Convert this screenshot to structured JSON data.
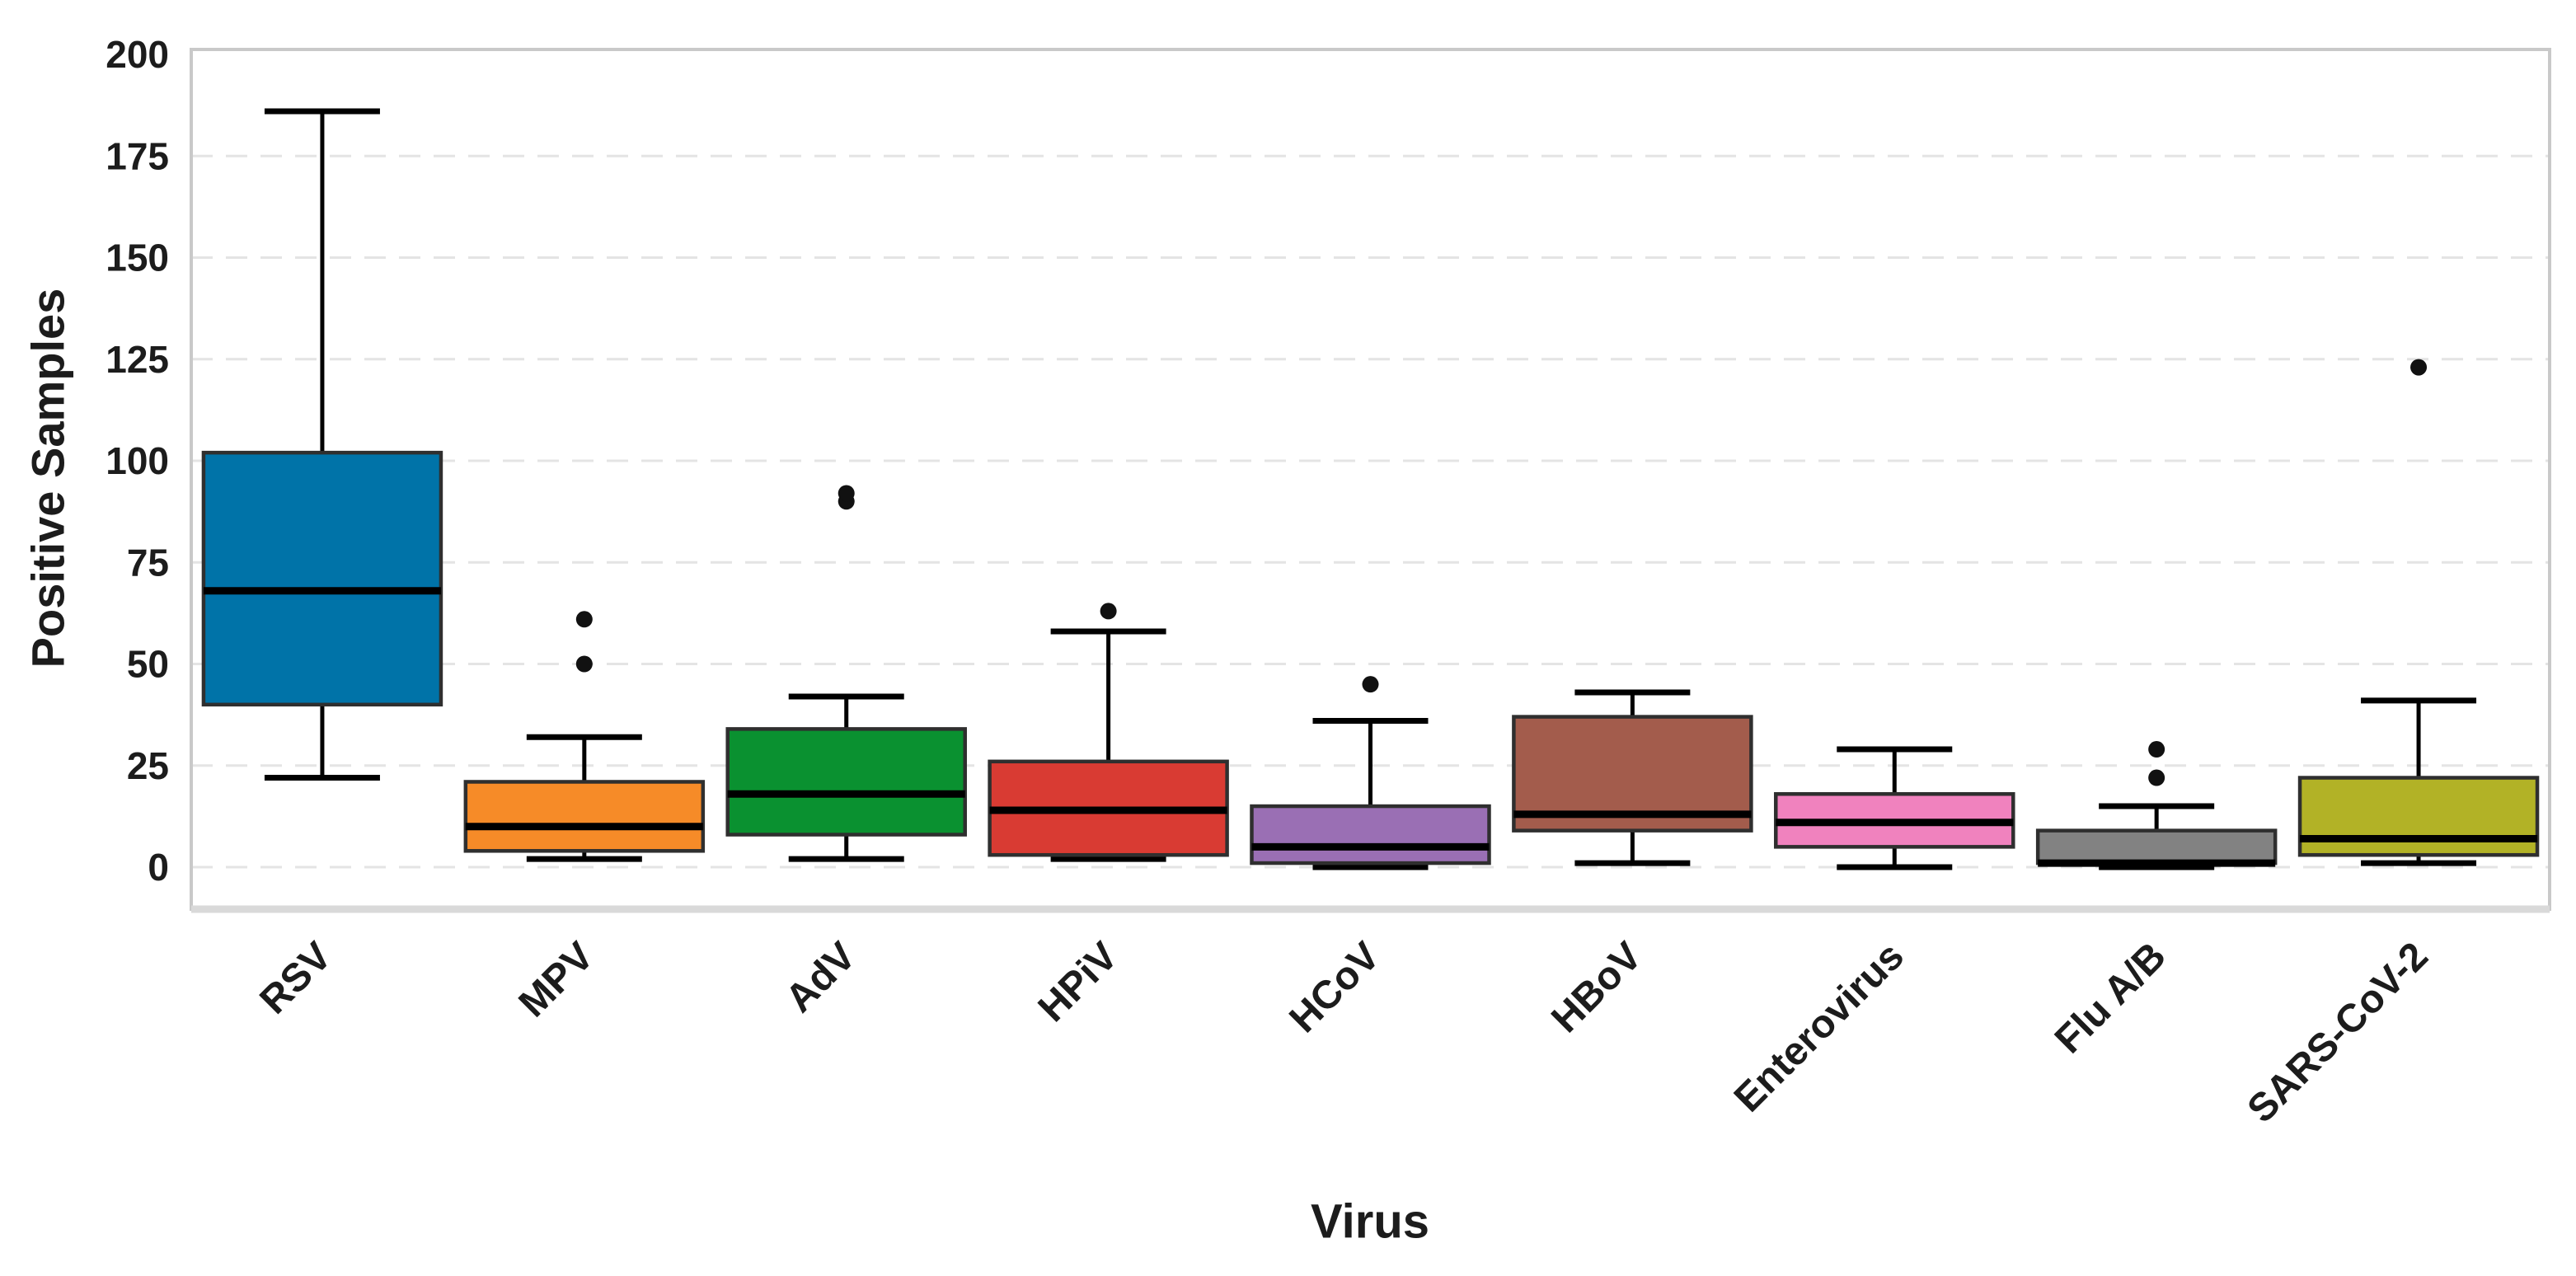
{
  "chart_data": {
    "type": "box",
    "title": "",
    "xlabel": "Virus",
    "ylabel": "Positive Samples",
    "ylim": [
      0,
      200
    ],
    "yticks": [
      0,
      25,
      50,
      75,
      100,
      125,
      150,
      175,
      200
    ],
    "grid": {
      "axis": "y",
      "style": "dashed",
      "top_tick_gridline": false
    },
    "legend_position": "none",
    "categories": [
      "RSV",
      "MPV",
      "AdV",
      "HPiV",
      "HCoV",
      "HBoV",
      "Enterovirus",
      "Flu A/B",
      "SARS-CoV-2"
    ],
    "series": [
      {
        "name": "RSV",
        "color": "#0073A8",
        "whislo": 22,
        "q1": 40,
        "med": 68,
        "q3": 102,
        "whishi": 186,
        "outliers": []
      },
      {
        "name": "MPV",
        "color": "#F68B28",
        "whislo": 2,
        "q1": 4,
        "med": 10,
        "q3": 21,
        "whishi": 32,
        "outliers": [
          50,
          61
        ]
      },
      {
        "name": "AdV",
        "color": "#0A9130",
        "whislo": 2,
        "q1": 8,
        "med": 18,
        "q3": 34,
        "whishi": 42,
        "outliers": [
          90,
          92
        ]
      },
      {
        "name": "HPiV",
        "color": "#D93B33",
        "whislo": 2,
        "q1": 3,
        "med": 14,
        "q3": 26,
        "whishi": 58,
        "outliers": [
          63
        ]
      },
      {
        "name": "HCoV",
        "color": "#9A6FB4",
        "whislo": 0,
        "q1": 1,
        "med": 5,
        "q3": 15,
        "whishi": 36,
        "outliers": [
          45
        ]
      },
      {
        "name": "HBoV",
        "color": "#A35C4C",
        "whislo": 1,
        "q1": 9,
        "med": 13,
        "q3": 37,
        "whishi": 43,
        "outliers": []
      },
      {
        "name": "Enterovirus",
        "color": "#F082BE",
        "whislo": 0,
        "q1": 5,
        "med": 11,
        "q3": 18,
        "whishi": 29,
        "outliers": []
      },
      {
        "name": "Flu A/B",
        "color": "#828282",
        "whislo": 0,
        "q1": 1,
        "med": 1,
        "q3": 9,
        "whishi": 15,
        "outliers": [
          22,
          29
        ]
      },
      {
        "name": "SARS-CoV-2",
        "color": "#B2B226",
        "whislo": 1,
        "q1": 3,
        "med": 7,
        "q3": 22,
        "whishi": 41,
        "outliers": [
          123
        ]
      }
    ],
    "style": {
      "background": "#ffffff",
      "grid_color": "#e4e4e4",
      "spine_color": "#c9c9c9",
      "bottom_spine_color": "#d9d9d9",
      "box_edge_color": "#2f2f2f",
      "median_color": "#000000",
      "whisker_color": "#000000",
      "outlier_color": "#111111",
      "text_color": "#1c1c1c"
    }
  }
}
